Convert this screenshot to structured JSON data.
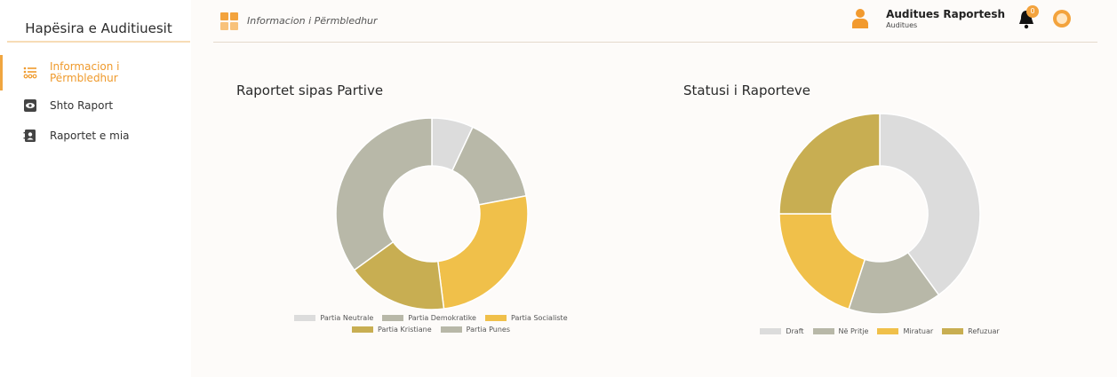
{
  "sidebar": {
    "title": "Hapësira e Auditiuesit",
    "items": [
      {
        "label": "Informacion i Përmbledhur",
        "active": true
      },
      {
        "label": "Shto Raport",
        "active": false
      },
      {
        "label": "Raportet e mia",
        "active": false
      }
    ]
  },
  "header": {
    "breadcrumb": "Informacion i Përmbledhur",
    "user_name": "Auditues Raportesh",
    "user_role": "Auditues",
    "notifications": "0"
  },
  "charts": {
    "left_title": "Raportet sipas Partive",
    "right_title": "Statusi i Raporteve"
  },
  "chart_data": [
    {
      "type": "pie",
      "title": "Raportet sipas Partive",
      "categories": [
        "Partia Neutrale",
        "Partia Demokratike",
        "Partia Socialiste",
        "Partia Kristiane",
        "Partia Punes"
      ],
      "values": [
        7,
        15,
        26,
        17,
        35
      ],
      "colors": [
        "#dcdcdc",
        "#b8b8a8",
        "#f0c04a",
        "#c8ae52",
        "#b8b8a8"
      ],
      "legend": "bottom"
    },
    {
      "type": "pie",
      "title": "Statusi i Raporteve",
      "categories": [
        "Draft",
        "Në Pritje",
        "Miratuar",
        "Refuzuar"
      ],
      "values": [
        40,
        15,
        20,
        25
      ],
      "colors": [
        "#dcdcdc",
        "#b8b8a8",
        "#f0c04a",
        "#c8ae52"
      ],
      "legend": "bottom"
    }
  ]
}
